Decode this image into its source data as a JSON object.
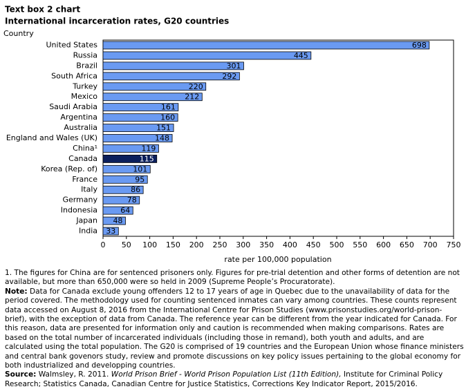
{
  "chart_data": {
    "type": "bar",
    "orientation": "horizontal",
    "title": "Text box 2 chart",
    "subtitle": "International  incarceration  rates, G20  countries",
    "y_label": "Country",
    "x_label": "rate per 100,000 population",
    "categories": [
      "United States",
      "Russia",
      "Brazil",
      "South Africa",
      "Turkey",
      "Mexico",
      "Saudi Arabia",
      "Argentina",
      "Australia",
      "England and Wales (UK)",
      "China¹",
      "Canada",
      "Korea (Rep. of)",
      "France",
      "Italy",
      "Germany",
      "Indonesia",
      "Japan",
      "India"
    ],
    "values": [
      698,
      445,
      301,
      292,
      220,
      212,
      161,
      160,
      151,
      148,
      119,
      115,
      101,
      95,
      86,
      78,
      64,
      48,
      33
    ],
    "colors": [
      "#6a9af2",
      "#6a9af2",
      "#6a9af2",
      "#6a9af2",
      "#6a9af2",
      "#6a9af2",
      "#6a9af2",
      "#6a9af2",
      "#6a9af2",
      "#6a9af2",
      "#6a9af2",
      "#0b1f5c",
      "#6a9af2",
      "#6a9af2",
      "#6a9af2",
      "#6a9af2",
      "#6a9af2",
      "#6a9af2",
      "#6a9af2"
    ],
    "xlim": [
      0,
      750
    ],
    "xticks": [
      0,
      50,
      100,
      150,
      200,
      250,
      300,
      350,
      400,
      450,
      500,
      550,
      600,
      650,
      700,
      750
    ],
    "grid": false
  },
  "notes": {
    "footnote": "1. The figures for China are for sentenced prisoners only. Figures for pre-trial detention and other forms of detention are not available, but more than 650,000 were so held in 2009 (Supreme People’s Procuratorate).",
    "note_label": "Note:",
    "note": "Data for Canada exclude young offenders 12 to 17 years of age in Quebec due to the unavailability of data for the period covered. The methodology used for counting sentenced inmates can vary among countries. These counts represent data accessed on August 8, 2016 from the International Centre for Prison Studies (www.prisonstudies.org/world-prison-brief), with the exception of data from Canada. The reference year can be different from the year indicated for Canada. For this reason, data are presented for information only and caution is recommended when making comparisons. Rates are based on the total number of incarcerated individuals (including those in remand), both youth and adults, and are calculated using the total population. The G20 is comprised of 19 countries and the European Union whose finance ministers and central bank govenors study, review and promote discussions on key policy issues pertaining to the global economy for both industrialized and developping countries.",
    "source_label": "Source:",
    "source_start": "Walmsley, R. 2011.",
    "source_title": "World Prison Brief - World Prison Population List (11th Edition),",
    "source_end": "Institute for Criminal Policy Research; Statistics Canada, Canadian Centre for Justice Statistics, Corrections Key Indicator Report, 2015/2016."
  }
}
